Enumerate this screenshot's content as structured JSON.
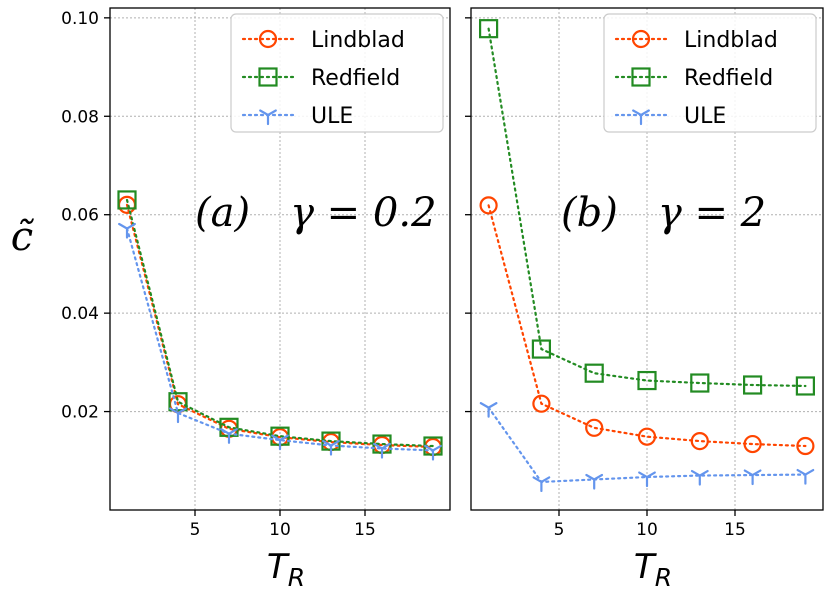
{
  "colors": {
    "lindblad": "#ff4500",
    "redfield": "#228b22",
    "ule": "#6495ed",
    "grid": "#b0b0b0",
    "axis": "#000000"
  },
  "y_axis_label": "c̃",
  "chart_data": [
    {
      "type": "line",
      "panel": "a",
      "annotation": {
        "label": "(a)",
        "formula": "γ = 0.2"
      },
      "xlabel": "T",
      "xlabel_sub": "R",
      "xlim": [
        0,
        20
      ],
      "ylim": [
        0.0,
        0.102
      ],
      "x_ticks": [
        5,
        10,
        15
      ],
      "y_ticks": [
        0.02,
        0.04,
        0.06,
        0.08,
        0.1
      ],
      "y_tick_labels": [
        "0.02",
        "0.04",
        "0.06",
        "0.08",
        "0.10"
      ],
      "x": [
        1,
        4,
        7,
        10,
        13,
        16,
        19
      ],
      "series": [
        {
          "name": "Lindblad",
          "marker": "circle",
          "values": [
            0.062,
            0.0215,
            0.0165,
            0.0148,
            0.0138,
            0.0132,
            0.0128
          ]
        },
        {
          "name": "Redfield",
          "marker": "square",
          "values": [
            0.063,
            0.022,
            0.0168,
            0.015,
            0.014,
            0.0134,
            0.013
          ]
        },
        {
          "name": "ULE",
          "marker": "tri",
          "values": [
            0.0572,
            0.0197,
            0.0155,
            0.0142,
            0.0131,
            0.0125,
            0.0121
          ]
        }
      ],
      "legend": {
        "position": "top-right",
        "entries": [
          "Lindblad",
          "Redfield",
          "ULE"
        ]
      }
    },
    {
      "type": "line",
      "panel": "b",
      "annotation": {
        "label": "(b)",
        "formula": "γ = 2"
      },
      "xlabel": "T",
      "xlabel_sub": "R",
      "xlim": [
        0,
        20
      ],
      "ylim": [
        0.0,
        0.102
      ],
      "x_ticks": [
        5,
        10,
        15
      ],
      "y_ticks": [
        0.02,
        0.04,
        0.06,
        0.08,
        0.1
      ],
      "y_tick_labels": [
        "",
        "",
        "",
        "",
        ""
      ],
      "x": [
        1,
        4,
        7,
        10,
        13,
        16,
        19
      ],
      "series": [
        {
          "name": "Lindblad",
          "marker": "circle",
          "values": [
            0.0619,
            0.0216,
            0.0167,
            0.0149,
            0.014,
            0.0134,
            0.013
          ]
        },
        {
          "name": "Redfield",
          "marker": "square",
          "values": [
            0.0978,
            0.0327,
            0.0278,
            0.0263,
            0.0258,
            0.0254,
            0.0252
          ]
        },
        {
          "name": "ULE",
          "marker": "tri",
          "values": [
            0.0208,
            0.0057,
            0.0062,
            0.0067,
            0.007,
            0.0071,
            0.0072
          ]
        }
      ],
      "legend": {
        "position": "top-right",
        "entries": [
          "Lindblad",
          "Redfield",
          "ULE"
        ]
      }
    }
  ]
}
